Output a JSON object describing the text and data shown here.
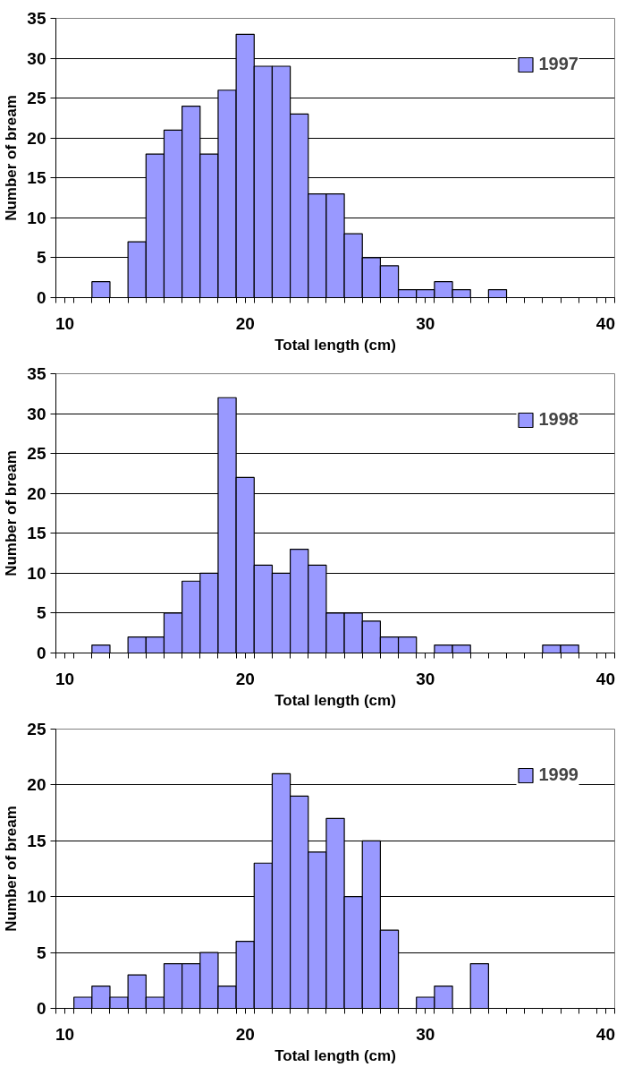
{
  "chart_data": [
    {
      "type": "histogram",
      "xlabel": "Total length (cm)",
      "ylabel": "Number of bream",
      "bins": [
        9.5,
        10.5,
        11.5,
        12.5,
        13.5,
        14.5,
        15.5,
        16.5,
        17.5,
        18.5,
        19.5,
        20.5,
        21.5,
        22.5,
        23.5,
        24.5,
        25.5,
        26.5,
        27.5,
        28.5,
        29.5,
        30.5,
        31.5,
        32.5,
        33.5,
        34.5,
        35.5,
        36.5,
        37.5,
        38.5,
        39.5,
        40.5
      ],
      "series": [
        {
          "name": "1997",
          "color": "#9999ff",
          "values": [
            0,
            0,
            2,
            0,
            7,
            18,
            21,
            24,
            18,
            26,
            33,
            29,
            29,
            23,
            13,
            13,
            8,
            5,
            4,
            1,
            1,
            2,
            1,
            0,
            1,
            0,
            0,
            0,
            0,
            0,
            0
          ]
        }
      ],
      "xlim": [
        9.5,
        40.5
      ],
      "xticks": [
        10,
        20,
        30,
        40,
        {
          "value": 9.5,
          "label": null
        },
        {
          "value": 10.5,
          "label": null
        },
        {
          "value": 11.5,
          "label": null
        },
        {
          "value": 12.5,
          "label": null
        },
        {
          "value": 13.5,
          "label": null
        },
        {
          "value": 14.5,
          "label": null
        },
        {
          "value": 15.5,
          "label": null
        },
        {
          "value": 16.5,
          "label": null
        },
        {
          "value": 17.5,
          "label": null
        },
        {
          "value": 18.5,
          "label": null
        },
        {
          "value": 19.5,
          "label": null
        },
        {
          "value": 20.5,
          "label": null
        },
        {
          "value": 21.5,
          "label": null
        },
        {
          "value": 22.5,
          "label": null
        },
        {
          "value": 23.5,
          "label": null
        },
        {
          "value": 24.5,
          "label": null
        },
        {
          "value": 25.5,
          "label": null
        },
        {
          "value": 26.5,
          "label": null
        },
        {
          "value": 27.5,
          "label": null
        },
        {
          "value": 28.5,
          "label": null
        },
        {
          "value": 29.5,
          "label": null
        },
        {
          "value": 30.5,
          "label": null
        },
        {
          "value": 31.5,
          "label": null
        },
        {
          "value": 32.5,
          "label": null
        },
        {
          "value": 33.5,
          "label": null
        },
        {
          "value": 34.5,
          "label": null
        },
        {
          "value": 35.5,
          "label": null
        },
        {
          "value": 36.5,
          "label": null
        },
        {
          "value": 37.5,
          "label": null
        },
        {
          "value": 38.5,
          "label": null
        },
        {
          "value": 39.5,
          "label": null
        },
        {
          "value": 40.5,
          "label": null
        }
      ],
      "ylim": [
        0,
        35
      ],
      "yticks": [
        0,
        5,
        10,
        15,
        20,
        25,
        30,
        35
      ],
      "grid": "y",
      "legend": "top right"
    },
    {
      "type": "histogram",
      "xlabel": "Total length (cm)",
      "ylabel": "Number of bream",
      "bins": [
        9.5,
        10.5,
        11.5,
        12.5,
        13.5,
        14.5,
        15.5,
        16.5,
        17.5,
        18.5,
        19.5,
        20.5,
        21.5,
        22.5,
        23.5,
        24.5,
        25.5,
        26.5,
        27.5,
        28.5,
        29.5,
        30.5,
        31.5,
        32.5,
        33.5,
        34.5,
        35.5,
        36.5,
        37.5,
        38.5,
        39.5,
        40.5
      ],
      "series": [
        {
          "name": "1998",
          "color": "#9999ff",
          "values": [
            0,
            0,
            1,
            0,
            2,
            2,
            5,
            9,
            10,
            32,
            22,
            11,
            10,
            13,
            11,
            5,
            5,
            4,
            2,
            2,
            0,
            1,
            1,
            0,
            0,
            0,
            0,
            1,
            1,
            0,
            0
          ]
        }
      ],
      "xlim": [
        9.5,
        40.5
      ],
      "xticks": [
        10,
        20,
        30,
        40,
        {
          "value": 9.5,
          "label": null
        },
        {
          "value": 10.5,
          "label": null
        },
        {
          "value": 11.5,
          "label": null
        },
        {
          "value": 12.5,
          "label": null
        },
        {
          "value": 13.5,
          "label": null
        },
        {
          "value": 14.5,
          "label": null
        },
        {
          "value": 15.5,
          "label": null
        },
        {
          "value": 16.5,
          "label": null
        },
        {
          "value": 17.5,
          "label": null
        },
        {
          "value": 18.5,
          "label": null
        },
        {
          "value": 19.5,
          "label": null
        },
        {
          "value": 20.5,
          "label": null
        },
        {
          "value": 21.5,
          "label": null
        },
        {
          "value": 22.5,
          "label": null
        },
        {
          "value": 23.5,
          "label": null
        },
        {
          "value": 24.5,
          "label": null
        },
        {
          "value": 25.5,
          "label": null
        },
        {
          "value": 26.5,
          "label": null
        },
        {
          "value": 27.5,
          "label": null
        },
        {
          "value": 28.5,
          "label": null
        },
        {
          "value": 29.5,
          "label": null
        },
        {
          "value": 30.5,
          "label": null
        },
        {
          "value": 31.5,
          "label": null
        },
        {
          "value": 32.5,
          "label": null
        },
        {
          "value": 33.5,
          "label": null
        },
        {
          "value": 34.5,
          "label": null
        },
        {
          "value": 35.5,
          "label": null
        },
        {
          "value": 36.5,
          "label": null
        },
        {
          "value": 37.5,
          "label": null
        },
        {
          "value": 38.5,
          "label": null
        },
        {
          "value": 39.5,
          "label": null
        },
        {
          "value": 40.5,
          "label": null
        }
      ],
      "ylim": [
        0,
        35
      ],
      "yticks": [
        0,
        5,
        10,
        15,
        20,
        25,
        30,
        35
      ],
      "grid": "y",
      "legend": "top right"
    },
    {
      "type": "histogram",
      "xlabel": "Total length (cm)",
      "ylabel": "Number of bream",
      "bins": [
        9.5,
        10.5,
        11.5,
        12.5,
        13.5,
        14.5,
        15.5,
        16.5,
        17.5,
        18.5,
        19.5,
        20.5,
        21.5,
        22.5,
        23.5,
        24.5,
        25.5,
        26.5,
        27.5,
        28.5,
        29.5,
        30.5,
        31.5,
        32.5,
        33.5,
        34.5,
        35.5,
        36.5,
        37.5,
        38.5,
        39.5,
        40.5
      ],
      "series": [
        {
          "name": "1999",
          "color": "#9999ff",
          "values": [
            0,
            1,
            2,
            1,
            3,
            1,
            4,
            4,
            5,
            2,
            6,
            13,
            21,
            19,
            14,
            17,
            10,
            15,
            7,
            0,
            1,
            2,
            0,
            4,
            0,
            0,
            0,
            0,
            0,
            0,
            0
          ]
        }
      ],
      "xlim": [
        9.5,
        40.5
      ],
      "xticks": [
        10,
        20,
        30,
        40,
        {
          "value": 9.5,
          "label": null
        },
        {
          "value": 10.5,
          "label": null
        },
        {
          "value": 11.5,
          "label": null
        },
        {
          "value": 12.5,
          "label": null
        },
        {
          "value": 13.5,
          "label": null
        },
        {
          "value": 14.5,
          "label": null
        },
        {
          "value": 15.5,
          "label": null
        },
        {
          "value": 16.5,
          "label": null
        },
        {
          "value": 17.5,
          "label": null
        },
        {
          "value": 18.5,
          "label": null
        },
        {
          "value": 19.5,
          "label": null
        },
        {
          "value": 20.5,
          "label": null
        },
        {
          "value": 21.5,
          "label": null
        },
        {
          "value": 22.5,
          "label": null
        },
        {
          "value": 23.5,
          "label": null
        },
        {
          "value": 24.5,
          "label": null
        },
        {
          "value": 25.5,
          "label": null
        },
        {
          "value": 26.5,
          "label": null
        },
        {
          "value": 27.5,
          "label": null
        },
        {
          "value": 28.5,
          "label": null
        },
        {
          "value": 29.5,
          "label": null
        },
        {
          "value": 30.5,
          "label": null
        },
        {
          "value": 31.5,
          "label": null
        },
        {
          "value": 32.5,
          "label": null
        },
        {
          "value": 33.5,
          "label": null
        },
        {
          "value": 34.5,
          "label": null
        },
        {
          "value": 35.5,
          "label": null
        },
        {
          "value": 36.5,
          "label": null
        },
        {
          "value": 37.5,
          "label": null
        },
        {
          "value": 38.5,
          "label": null
        },
        {
          "value": 39.5,
          "label": null
        },
        {
          "value": 40.5,
          "label": null
        }
      ],
      "ylim": [
        0,
        25
      ],
      "yticks": [
        0,
        5,
        10,
        15,
        20,
        25
      ],
      "grid": "y",
      "legend": "top right"
    }
  ]
}
